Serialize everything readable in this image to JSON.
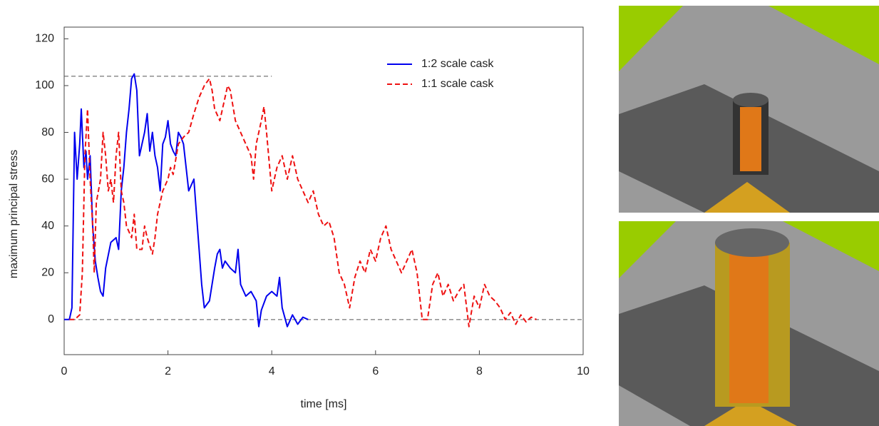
{
  "chart_data": {
    "type": "line",
    "xlabel": "time [ms]",
    "ylabel": "maximum principal stress",
    "xlim": [
      0,
      10
    ],
    "ylim": [
      -15,
      125
    ],
    "xticks": [
      0,
      2,
      4,
      6,
      8,
      10
    ],
    "yticks": [
      0,
      20,
      40,
      60,
      80,
      100,
      120
    ],
    "legend_position": "upper right",
    "hlines": [
      {
        "value": 104,
        "xmax": 4,
        "color": "#555555"
      },
      {
        "value": 0,
        "color": "#555555"
      }
    ],
    "series": [
      {
        "name": "1:2 scale cask",
        "color": "#0000ee",
        "dash": false,
        "x": [
          0,
          0.1,
          0.15,
          0.2,
          0.25,
          0.3,
          0.33,
          0.38,
          0.42,
          0.45,
          0.5,
          0.55,
          0.6,
          0.65,
          0.7,
          0.75,
          0.8,
          0.9,
          1.0,
          1.05,
          1.1,
          1.15,
          1.2,
          1.25,
          1.3,
          1.35,
          1.4,
          1.45,
          1.5,
          1.55,
          1.6,
          1.65,
          1.7,
          1.75,
          1.8,
          1.85,
          1.9,
          1.95,
          2.0,
          2.05,
          2.1,
          2.15,
          2.2,
          2.25,
          2.3,
          2.4,
          2.5,
          2.55,
          2.6,
          2.65,
          2.7,
          2.8,
          2.9,
          2.95,
          3.0,
          3.05,
          3.1,
          3.2,
          3.3,
          3.35,
          3.4,
          3.5,
          3.6,
          3.7,
          3.75,
          3.8,
          3.9,
          4.0,
          4.1,
          4.15,
          4.2,
          4.3,
          4.4,
          4.5,
          4.6,
          4.7
        ],
        "values": [
          0,
          0,
          5,
          80,
          60,
          75,
          90,
          65,
          72,
          60,
          70,
          40,
          25,
          18,
          12,
          10,
          22,
          33,
          35,
          30,
          55,
          65,
          80,
          90,
          103,
          105,
          98,
          70,
          75,
          80,
          88,
          72,
          80,
          70,
          65,
          55,
          75,
          78,
          85,
          75,
          72,
          70,
          80,
          78,
          75,
          55,
          60,
          45,
          30,
          15,
          5,
          8,
          22,
          28,
          30,
          22,
          25,
          22,
          20,
          30,
          15,
          10,
          12,
          8,
          -3,
          4,
          10,
          12,
          10,
          18,
          5,
          -3,
          2,
          -2,
          1,
          0
        ]
      },
      {
        "name": "1:1 scale cask",
        "color": "#ee1111",
        "dash": true,
        "x": [
          0.1,
          0.2,
          0.3,
          0.35,
          0.4,
          0.45,
          0.5,
          0.55,
          0.58,
          0.62,
          0.7,
          0.75,
          0.8,
          0.85,
          0.9,
          0.95,
          1.0,
          1.05,
          1.1,
          1.15,
          1.2,
          1.3,
          1.35,
          1.4,
          1.5,
          1.55,
          1.6,
          1.7,
          1.75,
          1.8,
          1.9,
          2.0,
          2.05,
          2.1,
          2.2,
          2.3,
          2.4,
          2.5,
          2.6,
          2.7,
          2.8,
          2.85,
          2.9,
          3.0,
          3.1,
          3.15,
          3.2,
          3.3,
          3.4,
          3.5,
          3.6,
          3.65,
          3.7,
          3.8,
          3.85,
          3.9,
          4.0,
          4.05,
          4.1,
          4.2,
          4.3,
          4.4,
          4.5,
          4.6,
          4.7,
          4.8,
          4.9,
          5.0,
          5.1,
          5.2,
          5.3,
          5.4,
          5.5,
          5.6,
          5.7,
          5.8,
          5.9,
          6.0,
          6.1,
          6.2,
          6.3,
          6.4,
          6.5,
          6.6,
          6.7,
          6.8,
          6.9,
          7.0,
          7.1,
          7.2,
          7.3,
          7.4,
          7.5,
          7.6,
          7.7,
          7.8,
          7.9,
          8.0,
          8.1,
          8.2,
          8.3,
          8.4,
          8.5,
          8.6,
          8.7,
          8.8,
          8.9,
          9.0,
          9.1
        ],
        "values": [
          0,
          0,
          2,
          20,
          70,
          90,
          60,
          40,
          20,
          50,
          60,
          80,
          70,
          55,
          60,
          50,
          70,
          80,
          55,
          50,
          40,
          35,
          45,
          30,
          30,
          40,
          35,
          28,
          35,
          45,
          55,
          60,
          65,
          62,
          75,
          78,
          80,
          88,
          95,
          100,
          103,
          98,
          90,
          85,
          95,
          100,
          98,
          85,
          80,
          75,
          70,
          60,
          75,
          85,
          91,
          80,
          55,
          60,
          65,
          70,
          60,
          70,
          60,
          55,
          50,
          55,
          45,
          40,
          42,
          35,
          20,
          15,
          5,
          18,
          25,
          20,
          30,
          25,
          35,
          40,
          30,
          25,
          20,
          25,
          30,
          20,
          0,
          0,
          15,
          20,
          10,
          15,
          8,
          12,
          15,
          -3,
          10,
          5,
          15,
          10,
          8,
          5,
          0,
          3,
          -2,
          2,
          -1,
          1,
          0
        ]
      }
    ]
  }
}
